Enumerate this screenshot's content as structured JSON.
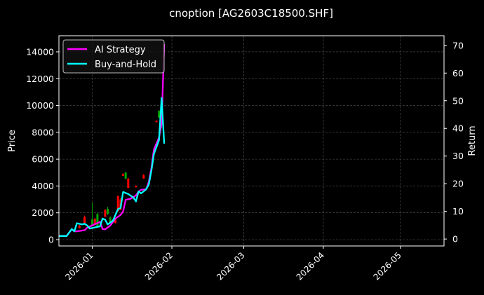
{
  "chart_data": {
    "type": "line",
    "title": "cnoption [AG2603C18500.SHF]",
    "xlabel": "",
    "ylabel": "Price",
    "y2label": "Return",
    "xlim": [
      "2025-12-19",
      "2026-05-18"
    ],
    "ylim": [
      -470,
      15200
    ],
    "y2lim": [
      -2.5,
      73.5
    ],
    "x_ticks": [
      "2026-01",
      "2026-02",
      "2026-03",
      "2026-04",
      "2026-05"
    ],
    "y_ticks": [
      0,
      2000,
      4000,
      6000,
      8000,
      10000,
      12000,
      14000
    ],
    "y2_ticks": [
      0,
      10,
      20,
      30,
      40,
      50,
      60,
      70
    ],
    "grid": true,
    "legend_position": "top-left",
    "colors": {
      "background": "#000000",
      "ai": "#ff00ff",
      "bh": "#00ffff",
      "up": "#00aa00",
      "down": "#ff0000",
      "grid": "#555555"
    },
    "candles": [
      {
        "date": "2025-12-27",
        "open": 1050,
        "high": 1100,
        "low": 850,
        "close": 850
      },
      {
        "date": "2025-12-29",
        "open": 1700,
        "high": 1800,
        "low": 1250,
        "close": 1250
      },
      {
        "date": "2026-01-01",
        "open": 1050,
        "high": 2750,
        "low": 1000,
        "close": 1500
      },
      {
        "date": "2026-01-02",
        "open": 1550,
        "high": 1600,
        "low": 1150,
        "close": 1150
      },
      {
        "date": "2026-01-03",
        "open": 1000,
        "high": 2000,
        "low": 950,
        "close": 1900
      },
      {
        "date": "2026-01-06",
        "open": 2200,
        "high": 2300,
        "low": 1700,
        "close": 1700
      },
      {
        "date": "2026-01-07",
        "open": 1900,
        "high": 2450,
        "low": 1850,
        "close": 2300
      },
      {
        "date": "2026-01-08",
        "open": 1250,
        "high": 1750,
        "low": 1200,
        "close": 1650
      },
      {
        "date": "2026-01-10",
        "open": 1500,
        "high": 1550,
        "low": 1200,
        "close": 1250
      },
      {
        "date": "2026-01-11",
        "open": 3250,
        "high": 3300,
        "low": 2100,
        "close": 2100
      },
      {
        "date": "2026-01-12",
        "open": 3000,
        "high": 3100,
        "low": 2200,
        "close": 2200
      },
      {
        "date": "2026-01-13",
        "open": 4900,
        "high": 4950,
        "low": 4750,
        "close": 4750
      },
      {
        "date": "2026-01-14",
        "open": 4550,
        "high": 5050,
        "low": 4500,
        "close": 5000
      },
      {
        "date": "2026-01-15",
        "open": 4550,
        "high": 4600,
        "low": 3850,
        "close": 3850
      },
      {
        "date": "2026-01-18",
        "open": 4000,
        "high": 4050,
        "low": 3900,
        "close": 3900
      },
      {
        "date": "2026-01-21",
        "open": 4800,
        "high": 4900,
        "low": 4550,
        "close": 4550
      },
      {
        "date": "2026-01-26",
        "open": 8850,
        "high": 8900,
        "low": 8750,
        "close": 8750
      },
      {
        "date": "2026-01-27",
        "open": 9100,
        "high": 9650,
        "low": 9050,
        "close": 9600
      }
    ],
    "series": [
      {
        "name": "AI Strategy",
        "axis": "right",
        "x": [
          "2025-12-19",
          "2025-12-22",
          "2025-12-24",
          "2025-12-25",
          "2025-12-26",
          "2025-12-29",
          "2025-12-30",
          "2026-01-04",
          "2026-01-05",
          "2026-01-06",
          "2026-01-08",
          "2026-01-10",
          "2026-01-12",
          "2026-01-13",
          "2026-01-14",
          "2026-01-16",
          "2026-01-18",
          "2026-01-19",
          "2026-01-20",
          "2026-01-22",
          "2026-01-23",
          "2026-01-24",
          "2026-01-25",
          "2026-01-27",
          "2026-01-28",
          "2026-01-29"
        ],
        "values": [
          1.1,
          1.1,
          3.6,
          2.8,
          2.8,
          3.2,
          4.1,
          6.2,
          3.6,
          3.5,
          4.9,
          7.4,
          8.7,
          10.0,
          14.2,
          14.6,
          15.8,
          17.1,
          17.8,
          18.0,
          20.6,
          25.6,
          32.4,
          36.7,
          41.7,
          70.5
        ]
      },
      {
        "name": "Buy-and-Hold",
        "axis": "right",
        "x": [
          "2025-12-19",
          "2025-12-22",
          "2025-12-24",
          "2025-12-25",
          "2025-12-26",
          "2025-12-28",
          "2025-12-29",
          "2025-12-30",
          "2025-12-31",
          "2026-01-04",
          "2026-01-05",
          "2026-01-06",
          "2026-01-07",
          "2026-01-09",
          "2026-01-11",
          "2026-01-12",
          "2026-01-13",
          "2026-01-15",
          "2026-01-17",
          "2026-01-18",
          "2026-01-19",
          "2026-01-20",
          "2026-01-22",
          "2026-01-23",
          "2026-01-24",
          "2026-01-25",
          "2026-01-27",
          "2026-01-28",
          "2026-01-29"
        ],
        "values": [
          1.1,
          1.1,
          3.6,
          2.8,
          5.7,
          5.3,
          5.5,
          4.9,
          3.8,
          4.6,
          7.4,
          7.0,
          5.3,
          6.6,
          10.8,
          11.2,
          17.0,
          16.3,
          15.0,
          13.6,
          17.2,
          16.5,
          18.0,
          19.7,
          24.7,
          30.7,
          35.8,
          51.0,
          34.5
        ]
      }
    ]
  }
}
